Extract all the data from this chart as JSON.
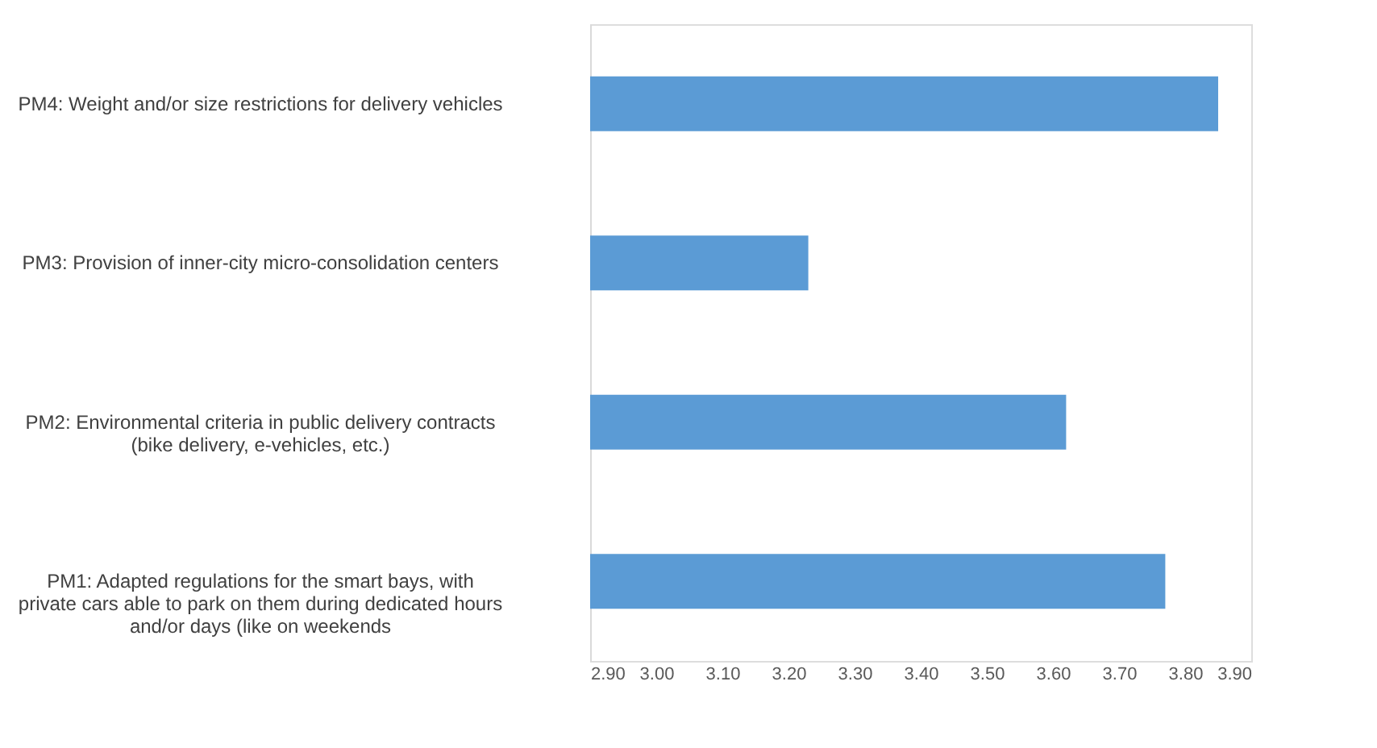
{
  "chart_data": {
    "type": "bar",
    "orientation": "horizontal",
    "categories": [
      "PM4: Weight and/or size restrictions for delivery vehicles",
      "PM3: Provision of inner-city micro-consolidation centers",
      "PM2: Environmental criteria in public delivery contracts\n(bike delivery, e-vehicles, etc.)",
      "PM1: Adapted regulations for the smart bays, with\nprivate cars able to park on them during dedicated hours\nand/or days (like on weekends"
    ],
    "values": [
      3.85,
      3.23,
      3.62,
      3.77
    ],
    "color": "#5b9bd5",
    "xlim": [
      2.9,
      3.9
    ],
    "xticks": [
      {
        "value": 2.9,
        "label": "2.90"
      },
      {
        "value": 3.0,
        "label": "3.00"
      },
      {
        "value": 3.1,
        "label": "3.10"
      },
      {
        "value": 3.2,
        "label": "3.20"
      },
      {
        "value": 3.3,
        "label": "3.30"
      },
      {
        "value": 3.4,
        "label": "3.40"
      },
      {
        "value": 3.5,
        "label": "3.50"
      },
      {
        "value": 3.6,
        "label": "3.60"
      },
      {
        "value": 3.7,
        "label": "3.70"
      },
      {
        "value": 3.8,
        "label": "3.80"
      },
      {
        "value": 3.9,
        "label": "3.90"
      }
    ],
    "grid": false
  }
}
